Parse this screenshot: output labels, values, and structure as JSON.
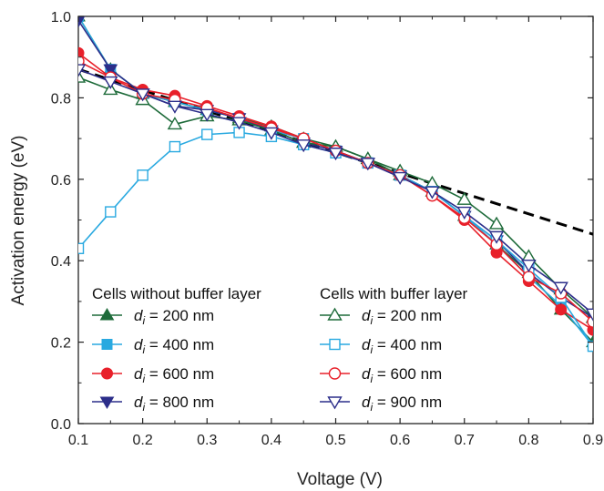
{
  "chart_data": {
    "type": "line",
    "xlabel": "Voltage (V)",
    "ylabel": "Activation energy (eV)",
    "xlim": [
      0.1,
      0.9
    ],
    "ylim": [
      0.0,
      1.0
    ],
    "xticks": [
      "0.1",
      "0.2",
      "0.3",
      "0.4",
      "0.5",
      "0.6",
      "0.7",
      "0.8",
      "0.9"
    ],
    "yticks": [
      "0.0",
      "0.2",
      "0.4",
      "0.6",
      "0.8",
      "1.0"
    ],
    "grid": false,
    "legend": {
      "group_without_title": "Cells without buffer layer",
      "group_with_title": "Cells with buffer layer",
      "prefix": "d",
      "subscript": "i",
      "without": [
        " = 200 nm",
        " = 400 nm",
        " = 600 nm",
        " = 800 nm"
      ],
      "with": [
        " = 200 nm",
        " = 400 nm",
        " = 600 nm",
        " = 900 nm"
      ]
    },
    "x": [
      0.1,
      0.15,
      0.2,
      0.25,
      0.3,
      0.35,
      0.4,
      0.45,
      0.5,
      0.55,
      0.6,
      0.65,
      0.7,
      0.75,
      0.8,
      0.85,
      0.9
    ],
    "series": [
      {
        "group": "without",
        "di": 200,
        "color": "#1e6b3a",
        "marker": "triangle-up",
        "filled": true,
        "values": [
          1.0,
          0.87,
          0.81,
          0.79,
          0.77,
          0.75,
          0.73,
          0.7,
          0.68,
          0.65,
          0.61,
          0.57,
          0.51,
          0.44,
          0.37,
          0.28,
          0.2
        ]
      },
      {
        "group": "without",
        "di": 400,
        "color": "#29a9e0",
        "marker": "square",
        "filled": true,
        "values": [
          1.0,
          0.87,
          0.81,
          0.79,
          0.77,
          0.75,
          0.72,
          0.7,
          0.67,
          0.64,
          0.61,
          0.57,
          0.51,
          0.44,
          0.36,
          0.29,
          0.19
        ]
      },
      {
        "group": "without",
        "di": 600,
        "color": "#e8202a",
        "marker": "circle",
        "filled": true,
        "values": [
          0.91,
          0.85,
          0.82,
          0.805,
          0.78,
          0.755,
          0.73,
          0.7,
          0.67,
          0.64,
          0.61,
          0.56,
          0.5,
          0.42,
          0.35,
          0.28,
          0.23
        ]
      },
      {
        "group": "without",
        "di": 800,
        "color": "#2c2e8a",
        "marker": "triangle-down",
        "filled": true,
        "values": [
          0.99,
          0.87,
          0.81,
          0.78,
          0.77,
          0.75,
          0.72,
          0.69,
          0.67,
          0.64,
          0.61,
          0.57,
          0.51,
          0.45,
          0.37,
          0.31,
          0.26
        ]
      },
      {
        "group": "with",
        "di": 200,
        "color": "#1e6b3a",
        "marker": "triangle-up",
        "filled": false,
        "values": [
          0.85,
          0.82,
          0.795,
          0.735,
          0.755,
          0.745,
          0.72,
          0.69,
          0.68,
          0.65,
          0.62,
          0.59,
          0.55,
          0.49,
          0.41,
          0.33,
          0.26
        ]
      },
      {
        "group": "with",
        "di": 400,
        "color": "#29a9e0",
        "marker": "square",
        "filled": false,
        "values": [
          0.43,
          0.52,
          0.61,
          0.68,
          0.71,
          0.715,
          0.705,
          0.685,
          0.665,
          0.64,
          0.61,
          0.57,
          0.51,
          0.45,
          0.38,
          0.31,
          0.19
        ]
      },
      {
        "group": "with",
        "di": 600,
        "color": "#e8202a",
        "marker": "circle",
        "filled": false,
        "values": [
          0.89,
          0.85,
          0.81,
          0.795,
          0.775,
          0.75,
          0.725,
          0.7,
          0.67,
          0.64,
          0.61,
          0.56,
          0.505,
          0.44,
          0.36,
          0.32,
          0.25
        ]
      },
      {
        "group": "with",
        "di": 900,
        "color": "#2c2e8a",
        "marker": "triangle-down",
        "filled": false,
        "values": [
          0.87,
          0.84,
          0.81,
          0.78,
          0.76,
          0.74,
          0.715,
          0.685,
          0.665,
          0.64,
          0.605,
          0.57,
          0.52,
          0.46,
          0.39,
          0.335,
          0.27
        ]
      }
    ],
    "fit_line": {
      "style": "dashed",
      "color": "#000000",
      "x": [
        0.1,
        0.6,
        0.9
      ],
      "y": [
        0.87,
        0.615,
        0.465
      ]
    }
  }
}
